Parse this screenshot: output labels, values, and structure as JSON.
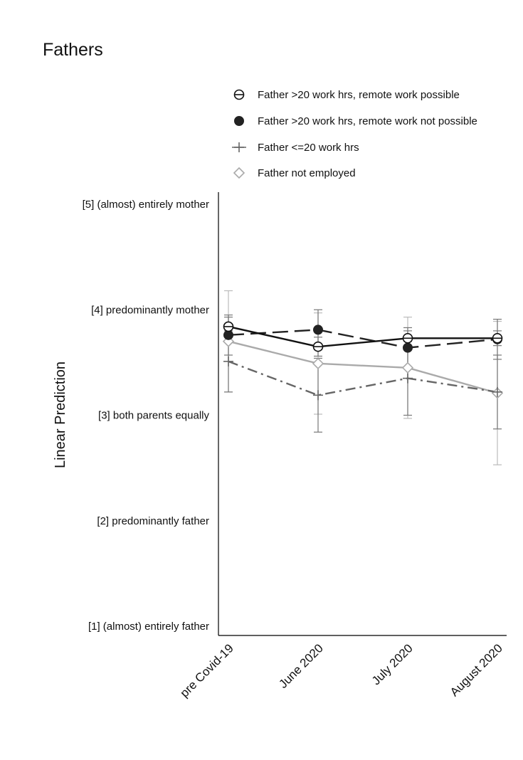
{
  "chart_data": {
    "type": "line",
    "title": "Fathers",
    "ylabel": "Linear Prediction",
    "xlabel": "",
    "ylim": [
      1,
      5
    ],
    "grid": false,
    "legend_placement": "top-right",
    "categories": [
      "pre Covid-19",
      "June 2020",
      "July 2020",
      "August 2020"
    ],
    "yticks": [
      {
        "value": 5,
        "label": "[5] (almost) entirely mother"
      },
      {
        "value": 4,
        "label": "[4] predominantly mother"
      },
      {
        "value": 3,
        "label": "[3] both parents equally"
      },
      {
        "value": 2,
        "label": "[2] predominantly father"
      },
      {
        "value": 1,
        "label": "[1] (almost) entirely father"
      }
    ],
    "series": [
      {
        "name": "Father >20 work hrs, remote work possible",
        "values": [
          3.84,
          3.65,
          3.73,
          3.73
        ],
        "ci_low": [
          3.75,
          3.56,
          3.66,
          3.66
        ],
        "ci_high": [
          3.93,
          3.74,
          3.8,
          3.8
        ],
        "color": "#111111",
        "dash": "solid",
        "marker": "circle-open"
      },
      {
        "name": "Father >20 work hrs, remote work not possible",
        "values": [
          3.76,
          3.81,
          3.64,
          3.72
        ],
        "ci_low": [
          3.57,
          3.62,
          3.45,
          3.53
        ],
        "ci_high": [
          3.95,
          4.0,
          3.83,
          3.91
        ],
        "color": "#222222",
        "dash": "long-dash",
        "marker": "circle-filled"
      },
      {
        "name": "Father <=20 work hrs",
        "values": [
          3.51,
          3.19,
          3.35,
          3.22
        ],
        "ci_low": [
          3.22,
          2.84,
          3.0,
          2.87
        ],
        "ci_high": [
          3.8,
          3.54,
          3.7,
          3.57
        ],
        "color": "#666666",
        "dash": "dash-dot",
        "marker": "plus"
      },
      {
        "name": "Father not employed",
        "values": [
          3.7,
          3.49,
          3.45,
          3.21
        ],
        "ci_low": [
          3.22,
          3.01,
          2.97,
          2.53
        ],
        "ci_high": [
          4.18,
          3.97,
          3.93,
          3.89
        ],
        "color": "#aaaaaa",
        "dash": "solid",
        "marker": "diamond-open"
      }
    ]
  }
}
